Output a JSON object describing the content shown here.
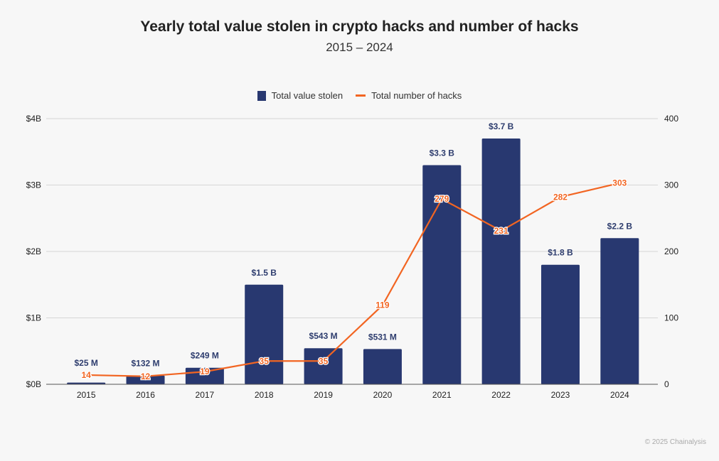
{
  "chart_data": {
    "type": "bar+line",
    "title": "Yearly total value stolen in crypto hacks and number of hacks",
    "subtitle": "2015 – 2024",
    "categories": [
      "2015",
      "2016",
      "2017",
      "2018",
      "2019",
      "2020",
      "2021",
      "2022",
      "2023",
      "2024"
    ],
    "series": [
      {
        "name": "Total value stolen",
        "type": "bar",
        "axis": "left",
        "color": "#283870",
        "values": [
          0.025,
          0.132,
          0.249,
          1.5,
          0.543,
          0.531,
          3.3,
          3.7,
          1.8,
          2.2
        ],
        "labels": [
          "$25  M",
          "$132  M",
          "$249  M",
          "$1.5 B",
          "$543  M",
          "$531  M",
          "$3.3 B",
          "$3.7 B",
          "$1.8 B",
          "$2.2 B"
        ]
      },
      {
        "name": "Total number of hacks",
        "type": "line",
        "axis": "right",
        "color": "#f26522",
        "values": [
          14,
          12,
          19,
          35,
          35,
          119,
          279,
          231,
          282,
          303
        ],
        "labels": [
          "14",
          "12",
          "19",
          "35",
          "35",
          "119",
          "279",
          "231",
          "282",
          "303"
        ]
      }
    ],
    "left_axis": {
      "ylim": [
        0,
        4
      ],
      "unit": "billion USD",
      "ticks": [
        0,
        1,
        2,
        3,
        4
      ],
      "tick_labels": [
        "$0B",
        "$1B",
        "$2B",
        "$3B",
        "$4B"
      ]
    },
    "right_axis": {
      "ylim": [
        0,
        400
      ],
      "ticks": [
        0,
        100,
        200,
        300,
        400
      ],
      "tick_labels": [
        "0",
        "100",
        "200",
        "300",
        "400"
      ]
    },
    "grid": true,
    "legend_position": "top-center"
  },
  "credit": "© 2025 Chainalysis"
}
